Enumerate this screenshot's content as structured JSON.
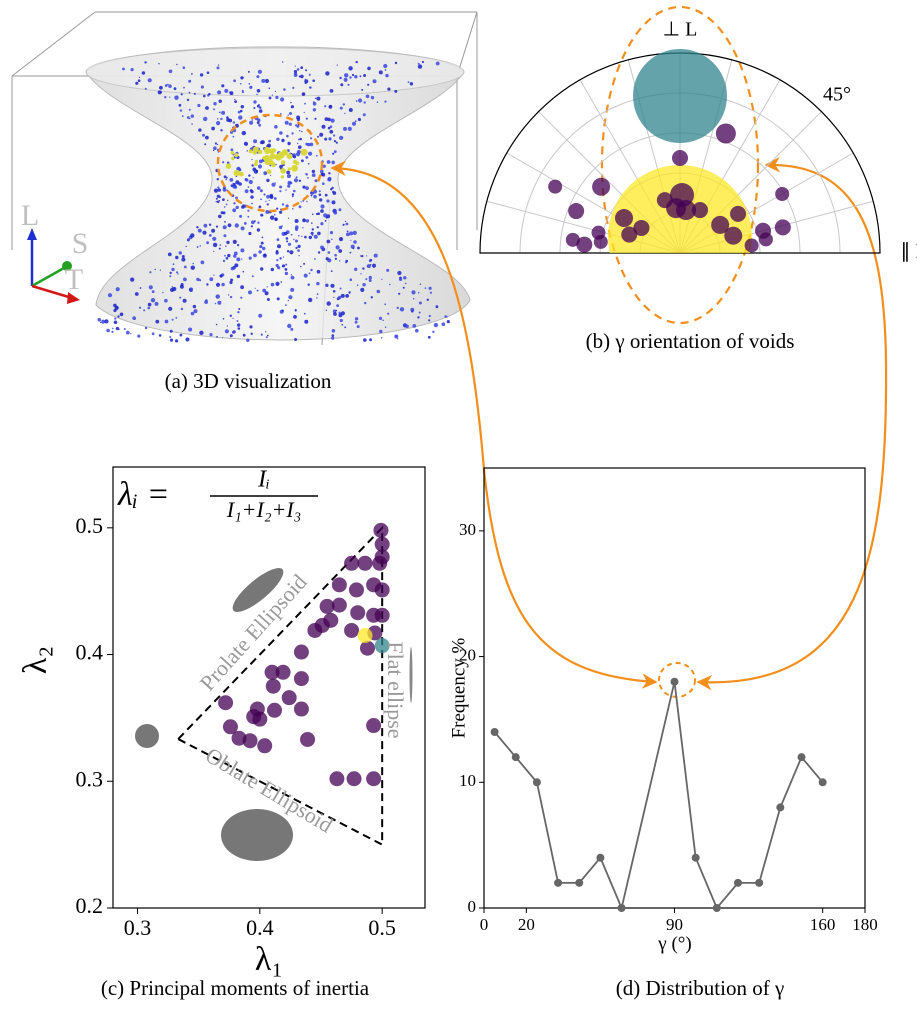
{
  "image_panel": {
    "caption": "(a) 3D visualization",
    "axis_labels": [
      "L",
      "S",
      "T"
    ]
  },
  "chart_data": [
    {
      "type": "polar-scatter",
      "caption": "(b) γ orientation of voids",
      "theta_labels": [
        {
          "value": 0,
          "label": "∥ L"
        },
        {
          "value": 45,
          "label": "45°"
        },
        {
          "value": 90,
          "label": "⊥ L"
        }
      ],
      "thetagrid": [
        15,
        30,
        45,
        60,
        75,
        90,
        105,
        120,
        135,
        150,
        165
      ],
      "rgrid": [
        0.2,
        0.4,
        0.6,
        0.8
      ],
      "rlim": [
        0,
        1
      ],
      "alpha": 0.75,
      "series": [
        {
          "color": "#fde725",
          "theta": [
            90
          ],
          "r": [
            0.08
          ],
          "size": [
            5184
          ]
        },
        {
          "color": "#31848d",
          "theta": [
            90
          ],
          "r": [
            0.785
          ],
          "size": [
            2209
          ]
        },
        {
          "color": "#440154",
          "theta": [
            90,
            69,
            88,
            95,
            82,
            65,
            106,
            140,
            152,
            158,
            166,
            173,
            175,
            148,
            160,
            147,
            35,
            18,
            34,
            15,
            14,
            9,
            6,
            30,
            172
          ],
          "r": [
            0.475,
            0.64,
            0.29,
            0.225,
            0.217,
            0.237,
            0.275,
            0.515,
            0.707,
            0.56,
            0.42,
            0.54,
            0.48,
            0.33,
            0.27,
            0.23,
            0.245,
            0.28,
            0.35,
            0.43,
            0.53,
            0.435,
            0.36,
            0.59,
            0.4
          ],
          "size": [
            64,
            100,
            144,
            100,
            100,
            64,
            64,
            81,
            49,
            64,
            49,
            49,
            64,
            81,
            64,
            64,
            81,
            81,
            64,
            64,
            64,
            49,
            49,
            49,
            49
          ]
        }
      ]
    },
    {
      "type": "scatter",
      "caption": "(c) Principal moments of inertia",
      "x_label": "λ₁",
      "y_label": "λ₂",
      "formula": {
        "lhs": "λᵢ =",
        "numerator": "Iᵢ",
        "denominator": "I₁+I₂+I₃"
      },
      "annotations": [
        "Prolate Ellipsoid",
        "Oblate Ellipsoid",
        "Flat ellipse"
      ],
      "xlim": [
        0.28,
        0.535
      ],
      "ylim": [
        0.2,
        0.548
      ],
      "xticks": [
        0.3,
        0.4,
        0.5
      ],
      "yticks": [
        0.2,
        0.3,
        0.4,
        0.5
      ],
      "alpha": 0.75,
      "reference_triangle": {
        "x": [
          0.3333,
          0.5,
          0.5
        ],
        "y": [
          0.3333,
          0.5,
          0.25
        ]
      },
      "series": [
        {
          "color": "#440154",
          "x": [
            0.499,
            0.5,
            0.5,
            0.498,
            0.486,
            0.475,
            0.465,
            0.479,
            0.493,
            0.5,
            0.48,
            0.493,
            0.5,
            0.455,
            0.458,
            0.445,
            0.451,
            0.465,
            0.475,
            0.494,
            0.488,
            0.434,
            0.434,
            0.41,
            0.419,
            0.411,
            0.424,
            0.434,
            0.412,
            0.398,
            0.395,
            0.4,
            0.376,
            0.372,
            0.392,
            0.383,
            0.404,
            0.439,
            0.493,
            0.493,
            0.477,
            0.463
          ],
          "y": [
            0.498,
            0.487,
            0.477,
            0.472,
            0.472,
            0.472,
            0.455,
            0.451,
            0.455,
            0.451,
            0.433,
            0.431,
            0.431,
            0.438,
            0.427,
            0.419,
            0.423,
            0.439,
            0.419,
            0.417,
            0.405,
            0.402,
            0.381,
            0.386,
            0.386,
            0.375,
            0.366,
            0.357,
            0.356,
            0.357,
            0.351,
            0.349,
            0.343,
            0.362,
            0.332,
            0.334,
            0.328,
            0.333,
            0.344,
            0.302,
            0.302,
            0.302
          ]
        },
        {
          "color": "#fde725",
          "x": [
            0.486
          ],
          "y": [
            0.415
          ]
        },
        {
          "color": "#31848d",
          "x": [
            0.5
          ],
          "y": [
            0.407
          ]
        }
      ]
    },
    {
      "type": "line",
      "caption": "(d) Distribution of γ",
      "x_label": "γ (°)",
      "y_label": "Frequency %",
      "color": "#666666",
      "xlim": [
        0,
        180
      ],
      "ylim": [
        0,
        35
      ],
      "xticks": [
        0,
        20,
        90,
        160,
        180
      ],
      "yticks": [
        0,
        10,
        20,
        30
      ],
      "x": [
        5,
        15,
        25,
        35,
        45,
        55,
        65,
        90,
        100,
        110,
        120,
        130,
        140,
        150,
        160
      ],
      "values": [
        14,
        12,
        10,
        2,
        2,
        4,
        0,
        18,
        4,
        0,
        2,
        2,
        8,
        12,
        10
      ]
    }
  ]
}
